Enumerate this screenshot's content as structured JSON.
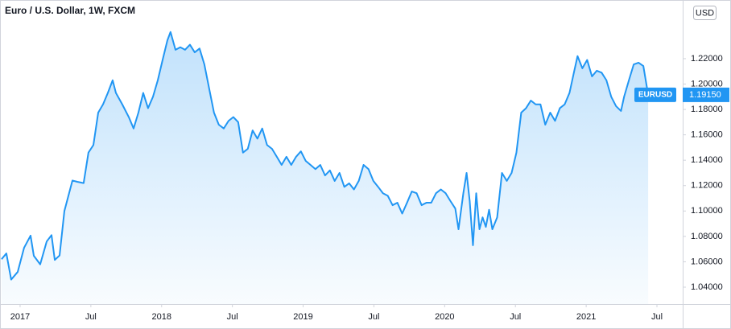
{
  "chart_data": {
    "type": "area",
    "title": "Euro / U.S. Dollar, 1W, FXCM",
    "currency": "USD",
    "x": [
      2016.869,
      2016.903,
      2016.937,
      2016.983,
      2017.028,
      2017.074,
      2017.097,
      2017.142,
      2017.188,
      2017.222,
      2017.245,
      2017.279,
      2017.313,
      2017.37,
      2017.404,
      2017.449,
      2017.483,
      2017.518,
      2017.552,
      2017.586,
      2017.62,
      2017.654,
      2017.677,
      2017.722,
      2017.768,
      2017.802,
      2017.836,
      2017.87,
      2017.904,
      2017.939,
      2017.973,
      2018.007,
      2018.041,
      2018.063,
      2018.098,
      2018.132,
      2018.166,
      2018.2,
      2018.234,
      2018.268,
      2018.302,
      2018.336,
      2018.37,
      2018.404,
      2018.439,
      2018.473,
      2018.507,
      2018.541,
      2018.575,
      2018.609,
      2018.643,
      2018.677,
      2018.711,
      2018.745,
      2018.78,
      2018.814,
      2018.848,
      2018.882,
      2018.916,
      2018.95,
      2018.984,
      2019.018,
      2019.052,
      2019.087,
      2019.121,
      2019.155,
      2019.189,
      2019.223,
      2019.257,
      2019.291,
      2019.325,
      2019.359,
      2019.393,
      2019.427,
      2019.462,
      2019.496,
      2019.53,
      2019.564,
      2019.598,
      2019.632,
      2019.666,
      2019.7,
      2019.734,
      2019.768,
      2019.802,
      2019.837,
      2019.871,
      2019.905,
      2019.939,
      2019.973,
      2020.007,
      2020.041,
      2020.075,
      2020.098,
      2020.132,
      2020.155,
      2020.177,
      2020.2,
      2020.223,
      2020.246,
      2020.268,
      2020.291,
      2020.314,
      2020.337,
      2020.371,
      2020.405,
      2020.439,
      2020.473,
      2020.507,
      2020.541,
      2020.575,
      2020.609,
      2020.643,
      2020.677,
      2020.711,
      2020.746,
      2020.78,
      2020.814,
      2020.848,
      2020.882,
      2020.916,
      2020.939,
      2020.973,
      2021.007,
      2021.041,
      2021.075,
      2021.109,
      2021.143,
      2021.177,
      2021.211,
      2021.246,
      2021.268,
      2021.302,
      2021.336,
      2021.37,
      2021.404,
      2021.438
    ],
    "series": [
      {
        "name": "EURUSD",
        "color": "#2196f3",
        "values": [
          1.062,
          1.0666,
          1.046,
          1.052,
          1.071,
          1.0806,
          1.0647,
          1.058,
          1.076,
          1.081,
          1.0615,
          1.065,
          1.1,
          1.124,
          1.123,
          1.122,
          1.146,
          1.152,
          1.1775,
          1.184,
          1.193,
          1.203,
          1.193,
          1.184,
          1.174,
          1.165,
          1.1775,
          1.193,
          1.181,
          1.19,
          1.203,
          1.219,
          1.2345,
          1.241,
          1.227,
          1.229,
          1.227,
          1.231,
          1.225,
          1.228,
          1.2155,
          1.1965,
          1.1775,
          1.168,
          1.165,
          1.171,
          1.174,
          1.17,
          1.146,
          1.149,
          1.1635,
          1.157,
          1.165,
          1.152,
          1.149,
          1.1427,
          1.1363,
          1.1427,
          1.1363,
          1.1427,
          1.147,
          1.1395,
          1.1363,
          1.133,
          1.1363,
          1.128,
          1.132,
          1.1237,
          1.13,
          1.119,
          1.1218,
          1.117,
          1.1237,
          1.1363,
          1.133,
          1.1237,
          1.119,
          1.114,
          1.112,
          1.1046,
          1.1065,
          1.098,
          1.1065,
          1.1154,
          1.114,
          1.1046,
          1.1065,
          1.1065,
          1.114,
          1.117,
          1.114,
          1.1078,
          1.102,
          1.0856,
          1.114,
          1.13,
          1.1078,
          1.073,
          1.114,
          1.0856,
          1.095,
          1.0875,
          1.101,
          1.0856,
          1.095,
          1.13,
          1.1237,
          1.13,
          1.146,
          1.1775,
          1.181,
          1.187,
          1.184,
          1.184,
          1.168,
          1.1775,
          1.171,
          1.181,
          1.184,
          1.193,
          1.2105,
          1.222,
          1.2124,
          1.219,
          1.206,
          1.2105,
          1.209,
          1.203,
          1.19,
          1.1826,
          1.1788,
          1.19,
          1.203,
          1.2155,
          1.2168,
          1.2142,
          1.1915
        ],
        "value_labels": [
          null,
          null,
          null,
          null,
          null,
          null,
          null,
          null,
          null,
          null,
          null,
          null,
          null,
          null,
          null,
          null,
          null,
          null,
          null,
          null,
          null,
          null,
          null,
          null,
          null,
          null,
          null,
          null,
          null,
          null,
          null,
          null,
          null,
          null,
          null,
          null,
          null,
          null,
          null,
          null,
          null,
          null,
          null,
          null,
          null,
          null,
          null,
          null,
          null,
          null,
          null,
          null,
          null,
          null,
          null,
          null,
          null,
          null,
          null,
          null,
          null,
          null,
          null,
          null,
          null,
          null,
          null,
          null,
          null,
          null,
          null,
          null,
          null,
          null,
          null,
          null,
          null,
          null,
          null,
          null,
          null,
          null,
          null,
          null,
          null,
          null,
          null,
          null,
          null,
          null,
          null,
          null,
          null,
          null,
          null,
          null,
          null,
          null,
          null,
          null,
          null,
          null,
          null,
          null,
          null,
          null,
          null,
          null,
          null,
          null,
          null,
          null,
          null,
          null,
          null,
          null,
          null,
          null,
          null,
          null,
          null,
          null,
          null,
          null,
          null,
          null,
          null,
          null,
          null,
          null,
          null,
          null,
          null,
          null,
          null,
          null,
          "1.19150"
        ]
      }
    ],
    "xlim": [
      2016.858,
      2021.682
    ],
    "xticks": [
      2017,
      {
        "value": 2017.5,
        "label": "Jul"
      },
      2018,
      {
        "value": 2018.5,
        "label": "Jul"
      },
      2019,
      {
        "value": 2019.5,
        "label": "Jul"
      },
      2020,
      {
        "value": 2020.5,
        "label": "Jul"
      },
      2021,
      {
        "value": 2021.5,
        "label": "Jul"
      }
    ],
    "ylim": [
      1.0267,
      1.2662
    ],
    "yticks": [
      {
        "value": 1.04,
        "label": "1.04000"
      },
      {
        "value": 1.06,
        "label": "1.06000"
      },
      {
        "value": 1.08,
        "label": "1.08000"
      },
      {
        "value": 1.1,
        "label": "1.10000"
      },
      {
        "value": 1.12,
        "label": "1.12000"
      },
      {
        "value": 1.14,
        "label": "1.14000"
      },
      {
        "value": 1.16,
        "label": "1.16000"
      },
      {
        "value": 1.18,
        "label": "1.18000"
      },
      {
        "value": 1.2,
        "label": "1.20000"
      },
      {
        "value": 1.22,
        "label": "1.22000"
      }
    ]
  }
}
